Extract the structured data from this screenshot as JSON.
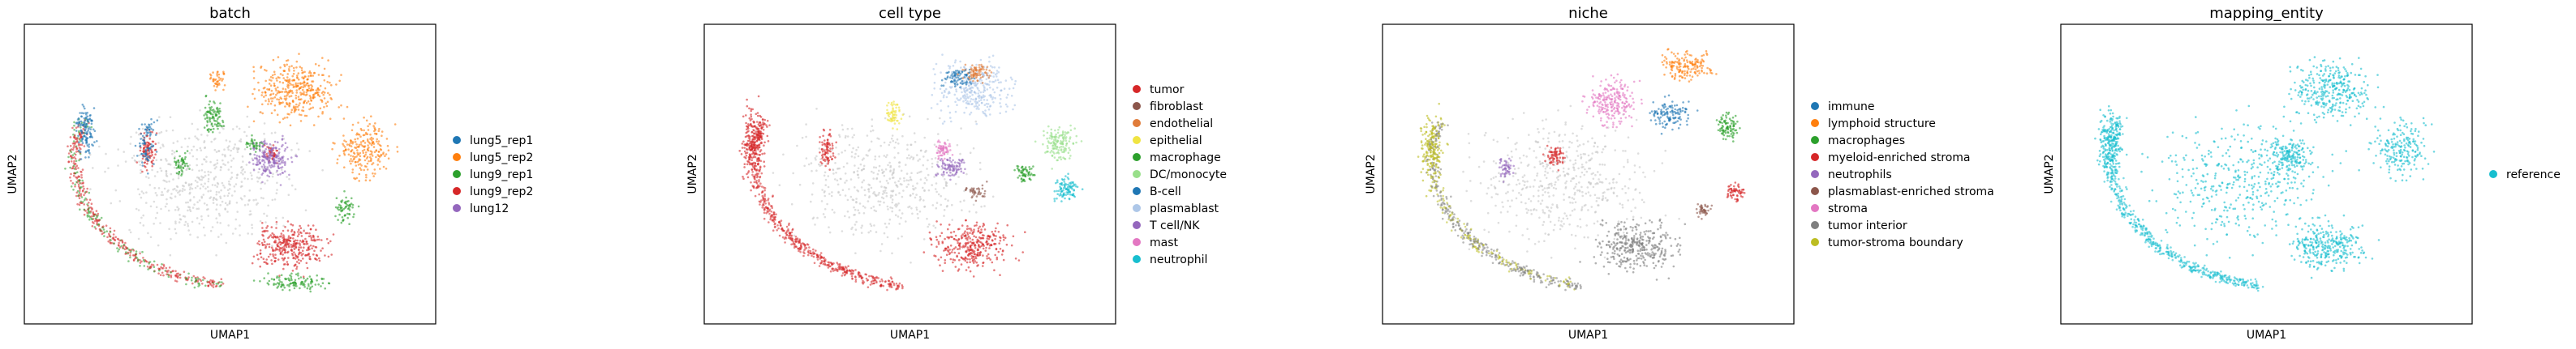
{
  "chart_data": [
    {
      "type": "scatter",
      "title": "batch",
      "xlabel": "UMAP1",
      "ylabel": "UMAP2",
      "grid": false,
      "legend_position": "right",
      "legend": [
        {
          "name": "lung5_rep1",
          "color": "#1f77b4"
        },
        {
          "name": "lung5_rep2",
          "color": "#ff7f0e"
        },
        {
          "name": "lung9_rep1",
          "color": "#2ca02c"
        },
        {
          "name": "lung9_rep2",
          "color": "#d62728"
        },
        {
          "name": "lung12",
          "color": "#9467bd"
        }
      ],
      "blobs": [
        {
          "c": "#c8c8c8",
          "cx": 0.44,
          "cy": 0.53,
          "rx": 0.36,
          "ry": 0.34,
          "n": 520
        },
        {
          "c": "#ff7f0e",
          "cx": 0.66,
          "cy": 0.22,
          "rx": 0.16,
          "ry": 0.16,
          "n": 360
        },
        {
          "c": "#ff7f0e",
          "cx": 0.83,
          "cy": 0.42,
          "rx": 0.11,
          "ry": 0.17,
          "n": 220
        },
        {
          "c": "#ff7f0e",
          "cx": 0.47,
          "cy": 0.19,
          "rx": 0.03,
          "ry": 0.05,
          "n": 40
        },
        {
          "c": "#2ca02c",
          "cx": 0.46,
          "cy": 0.31,
          "rx": 0.04,
          "ry": 0.1,
          "n": 90
        },
        {
          "c": "#2ca02c",
          "cx": 0.38,
          "cy": 0.46,
          "rx": 0.03,
          "ry": 0.07,
          "n": 50
        },
        {
          "c": "#2ca02c",
          "cx": 0.56,
          "cy": 0.4,
          "rx": 0.04,
          "ry": 0.04,
          "n": 40
        },
        {
          "c": "#2ca02c",
          "cx": 0.78,
          "cy": 0.62,
          "rx": 0.04,
          "ry": 0.08,
          "n": 60
        },
        {
          "c": "#2ca02c",
          "cx": 0.66,
          "cy": 0.86,
          "rx": 0.14,
          "ry": 0.05,
          "n": 110
        },
        {
          "c": "#d62728",
          "cx": 0.65,
          "cy": 0.74,
          "rx": 0.15,
          "ry": 0.13,
          "n": 320
        },
        {
          "c": "#d62728",
          "cx": 0.3,
          "cy": 0.42,
          "rx": 0.03,
          "ry": 0.1,
          "n": 90
        },
        {
          "c": "#d62728",
          "cx": 0.6,
          "cy": 0.43,
          "rx": 0.03,
          "ry": 0.04,
          "n": 40
        },
        {
          "c": "#9467bd",
          "cx": 0.6,
          "cy": 0.45,
          "rx": 0.08,
          "ry": 0.1,
          "n": 200
        },
        {
          "c": "#1f77b4",
          "cx": 0.15,
          "cy": 0.35,
          "rx": 0.04,
          "ry": 0.14,
          "n": 120
        },
        {
          "c": "#1f77b4",
          "cx": 0.3,
          "cy": 0.4,
          "rx": 0.04,
          "ry": 0.15,
          "n": 80
        }
      ],
      "arc": {
        "c": "#d62728",
        "c2": "#2ca02c",
        "n": 500
      }
    },
    {
      "type": "scatter",
      "title": "cell type",
      "xlabel": "UMAP1",
      "ylabel": "UMAP2",
      "grid": false,
      "legend_position": "right",
      "legend": [
        {
          "name": "tumor",
          "color": "#d62728"
        },
        {
          "name": "fibroblast",
          "color": "#8c564b"
        },
        {
          "name": "endothelial",
          "color": "#e07b39"
        },
        {
          "name": "epithelial",
          "color": "#f0e442"
        },
        {
          "name": "macrophage",
          "color": "#2ca02c"
        },
        {
          "name": "DC/monocyte",
          "color": "#98df8a"
        },
        {
          "name": "B-cell",
          "color": "#1f77b4"
        },
        {
          "name": "plasmablast",
          "color": "#aec7e8"
        },
        {
          "name": "T cell/NK",
          "color": "#9467bd"
        },
        {
          "name": "mast",
          "color": "#e377c2"
        },
        {
          "name": "neutrophil",
          "color": "#17becf"
        }
      ],
      "blobs": [
        {
          "c": "#c8c8c8",
          "cx": 0.44,
          "cy": 0.53,
          "rx": 0.36,
          "ry": 0.34,
          "n": 480
        },
        {
          "c": "#aec7e8",
          "cx": 0.66,
          "cy": 0.22,
          "rx": 0.16,
          "ry": 0.16,
          "n": 300
        },
        {
          "c": "#1f77b4",
          "cx": 0.62,
          "cy": 0.18,
          "rx": 0.06,
          "ry": 0.05,
          "n": 80
        },
        {
          "c": "#e07b39",
          "cx": 0.66,
          "cy": 0.16,
          "rx": 0.06,
          "ry": 0.05,
          "n": 80
        },
        {
          "c": "#98df8a",
          "cx": 0.86,
          "cy": 0.4,
          "rx": 0.07,
          "ry": 0.1,
          "n": 140
        },
        {
          "c": "#17becf",
          "cx": 0.88,
          "cy": 0.55,
          "rx": 0.05,
          "ry": 0.07,
          "n": 100
        },
        {
          "c": "#2ca02c",
          "cx": 0.78,
          "cy": 0.5,
          "rx": 0.04,
          "ry": 0.05,
          "n": 60
        },
        {
          "c": "#f0e442",
          "cx": 0.46,
          "cy": 0.3,
          "rx": 0.03,
          "ry": 0.08,
          "n": 60
        },
        {
          "c": "#e377c2",
          "cx": 0.58,
          "cy": 0.42,
          "rx": 0.04,
          "ry": 0.05,
          "n": 60
        },
        {
          "c": "#9467bd",
          "cx": 0.6,
          "cy": 0.48,
          "rx": 0.06,
          "ry": 0.06,
          "n": 90
        },
        {
          "c": "#8c564b",
          "cx": 0.66,
          "cy": 0.56,
          "rx": 0.04,
          "ry": 0.04,
          "n": 40
        },
        {
          "c": "#d62728",
          "cx": 0.65,
          "cy": 0.74,
          "rx": 0.15,
          "ry": 0.13,
          "n": 320
        },
        {
          "c": "#d62728",
          "cx": 0.12,
          "cy": 0.4,
          "rx": 0.05,
          "ry": 0.2,
          "n": 200
        },
        {
          "c": "#d62728",
          "cx": 0.3,
          "cy": 0.42,
          "rx": 0.03,
          "ry": 0.1,
          "n": 80
        }
      ],
      "arc": {
        "c": "#d62728",
        "c2": "#d62728",
        "n": 560
      }
    },
    {
      "type": "scatter",
      "title": "niche",
      "xlabel": "UMAP1",
      "ylabel": "UMAP2",
      "grid": false,
      "legend_position": "right",
      "legend": [
        {
          "name": "immune",
          "color": "#1f77b4"
        },
        {
          "name": "lymphoid structure",
          "color": "#ff7f0e"
        },
        {
          "name": "macrophages",
          "color": "#2ca02c"
        },
        {
          "name": "myeloid-enriched stroma",
          "color": "#d62728"
        },
        {
          "name": "neutrophils",
          "color": "#9467bd"
        },
        {
          "name": "plasmablast-enriched stroma",
          "color": "#8c564b"
        },
        {
          "name": "stroma",
          "color": "#e377c2"
        },
        {
          "name": "tumor interior",
          "color": "#7f7f7f"
        },
        {
          "name": "tumor-stroma boundary",
          "color": "#bcbd22"
        }
      ],
      "blobs": [
        {
          "c": "#c8c8c8",
          "cx": 0.44,
          "cy": 0.53,
          "rx": 0.36,
          "ry": 0.34,
          "n": 480
        },
        {
          "c": "#e377c2",
          "cx": 0.56,
          "cy": 0.26,
          "rx": 0.1,
          "ry": 0.14,
          "n": 220
        },
        {
          "c": "#ff7f0e",
          "cx": 0.74,
          "cy": 0.14,
          "rx": 0.1,
          "ry": 0.08,
          "n": 160
        },
        {
          "c": "#1f77b4",
          "cx": 0.7,
          "cy": 0.3,
          "rx": 0.08,
          "ry": 0.08,
          "n": 120
        },
        {
          "c": "#2ca02c",
          "cx": 0.84,
          "cy": 0.34,
          "rx": 0.05,
          "ry": 0.08,
          "n": 90
        },
        {
          "c": "#d62728",
          "cx": 0.42,
          "cy": 0.44,
          "rx": 0.04,
          "ry": 0.06,
          "n": 70
        },
        {
          "c": "#d62728",
          "cx": 0.86,
          "cy": 0.56,
          "rx": 0.04,
          "ry": 0.05,
          "n": 60
        },
        {
          "c": "#9467bd",
          "cx": 0.3,
          "cy": 0.48,
          "rx": 0.03,
          "ry": 0.06,
          "n": 50
        },
        {
          "c": "#8c564b",
          "cx": 0.78,
          "cy": 0.62,
          "rx": 0.03,
          "ry": 0.05,
          "n": 40
        },
        {
          "c": "#7f7f7f",
          "cx": 0.62,
          "cy": 0.74,
          "rx": 0.16,
          "ry": 0.13,
          "n": 340
        },
        {
          "c": "#bcbd22",
          "cx": 0.12,
          "cy": 0.42,
          "rx": 0.05,
          "ry": 0.2,
          "n": 160
        }
      ],
      "arc": {
        "c": "#7f7f7f",
        "c2": "#bcbd22",
        "n": 520
      }
    },
    {
      "type": "scatter",
      "title": "mapping_entity",
      "xlabel": "UMAP1",
      "ylabel": "UMAP2",
      "grid": false,
      "legend_position": "right",
      "legend": [
        {
          "name": "reference",
          "color": "#17becf"
        }
      ],
      "blobs": [
        {
          "c": "#17becf",
          "cx": 0.44,
          "cy": 0.53,
          "rx": 0.36,
          "ry": 0.34,
          "n": 420
        },
        {
          "c": "#17becf",
          "cx": 0.66,
          "cy": 0.22,
          "rx": 0.16,
          "ry": 0.16,
          "n": 320
        },
        {
          "c": "#17becf",
          "cx": 0.83,
          "cy": 0.42,
          "rx": 0.11,
          "ry": 0.17,
          "n": 200
        },
        {
          "c": "#17becf",
          "cx": 0.65,
          "cy": 0.74,
          "rx": 0.15,
          "ry": 0.13,
          "n": 300
        },
        {
          "c": "#17becf",
          "cx": 0.12,
          "cy": 0.4,
          "rx": 0.05,
          "ry": 0.2,
          "n": 180
        },
        {
          "c": "#17becf",
          "cx": 0.56,
          "cy": 0.44,
          "rx": 0.08,
          "ry": 0.1,
          "n": 160
        }
      ],
      "arc": {
        "c": "#17becf",
        "c2": "#17becf",
        "n": 540
      }
    }
  ]
}
